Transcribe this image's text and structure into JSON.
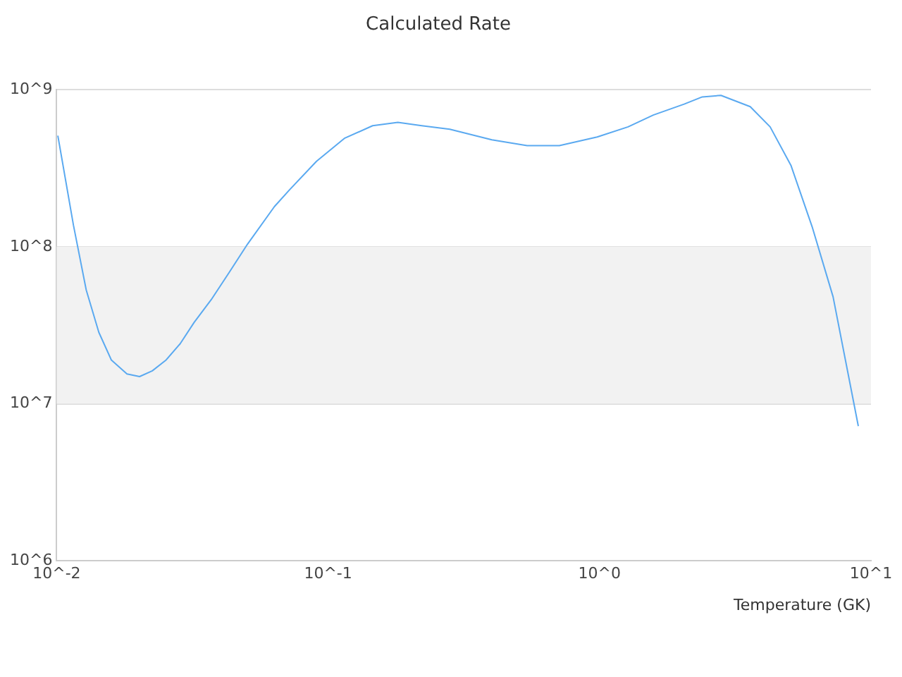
{
  "chart_data": {
    "type": "line",
    "title": "Calculated Rate",
    "xlabel": "Temperature (GK)",
    "log": "xy",
    "grid": "y",
    "legend": false,
    "marker": "none",
    "line_style": "solid",
    "x": [
      0.0101,
      0.01153,
      0.01285,
      0.0143,
      0.0159,
      0.01815,
      0.0202,
      0.0225,
      0.0253,
      0.0285,
      0.0321,
      0.0371,
      0.0433,
      0.0505,
      0.0634,
      0.0722,
      0.0906,
      0.1148,
      0.1459,
      0.1807,
      0.2213,
      0.2806,
      0.401,
      0.541,
      0.711,
      0.98,
      1.274,
      1.578,
      2.05,
      2.39,
      2.8,
      3.59,
      4.25,
      5.07,
      6.07,
      7.25,
      8.98
    ],
    "series": [
      {
        "color": "#5aa9f0",
        "values": [
          510000000,
          137000000,
          53000000,
          28500000,
          19000000,
          15500000,
          14900000,
          16200000,
          19000000,
          24100000,
          33000000,
          46000000,
          69000000,
          104000000,
          180000000,
          231000000,
          350000000,
          490000000,
          590000000,
          620000000,
          590000000,
          560000000,
          480000000,
          440000000,
          440000000,
          500000000,
          580000000,
          690000000,
          810000000,
          900000000,
          920000000,
          780000000,
          580000000,
          330000000,
          134000000,
          48000000,
          7200000
        ]
      }
    ],
    "xlim": [
      0.01,
      10
    ],
    "xticks": [
      {
        "value": 0.01,
        "label": "10^-2"
      },
      {
        "value": 0.1,
        "label": "10^-1"
      },
      {
        "value": 1,
        "label": "10^0"
      },
      {
        "value": 10,
        "label": "10^1"
      }
    ],
    "ylim": [
      1000000,
      1000000000
    ],
    "yticks": [
      {
        "value": 1000000,
        "label": "10^6"
      },
      {
        "value": 10000000,
        "label": "10^7"
      },
      {
        "value": 100000000,
        "label": "10^8"
      },
      {
        "value": 1000000000,
        "label": "10^9"
      }
    ],
    "bands": [
      {
        "axis": "y",
        "from": 10000000,
        "to": 100000000,
        "color": "#f2f2f2"
      }
    ]
  }
}
